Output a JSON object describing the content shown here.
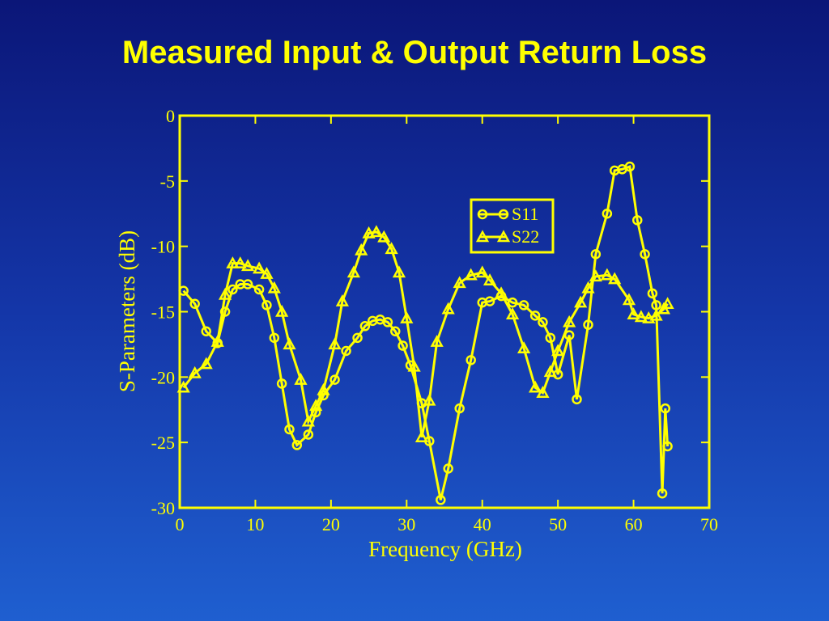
{
  "chart_data": {
    "type": "line",
    "title": "Measured Input & Output Return Loss",
    "xlabel": "Frequency (GHz)",
    "ylabel": "S-Parameters (dB)",
    "xlim": [
      0,
      70
    ],
    "xticks": [
      0,
      10,
      20,
      30,
      40,
      50,
      60,
      70
    ],
    "ylim": [
      -30,
      0
    ],
    "yticks": [
      -30,
      -25,
      -20,
      -15,
      -10,
      -5,
      0
    ],
    "series": [
      {
        "name": "S11",
        "color": "#ffff00",
        "marker": "circle",
        "x": [
          0.5,
          2,
          3.5,
          5,
          6,
          7,
          8,
          9,
          10.5,
          11.5,
          12.5,
          13.5,
          14.5,
          15.5,
          17,
          18,
          19,
          20.5,
          22,
          23.5,
          24.5,
          25.5,
          26.5,
          27.5,
          28.5,
          29.5,
          30.5,
          32,
          33,
          34.5,
          35.5,
          37,
          38.5,
          40,
          41,
          42.5,
          44,
          45.5,
          47,
          48,
          49,
          50,
          51.5,
          52.5,
          54,
          55,
          56.5,
          57.5,
          58.5,
          59.5,
          60.5,
          61.5,
          62.5,
          63,
          63.8,
          64.2,
          64.5
        ],
        "values": [
          -13.4,
          -14.4,
          -16.5,
          -17.4,
          -15,
          -13.3,
          -12.9,
          -12.9,
          -13.3,
          -14.5,
          -17,
          -20.5,
          -24,
          -25.2,
          -24.4,
          -22.7,
          -21.4,
          -20.2,
          -18,
          -17,
          -16.1,
          -15.7,
          -15.6,
          -15.8,
          -16.5,
          -17.6,
          -19.1,
          -22,
          -24.9,
          -29.4,
          -27,
          -22.4,
          -18.7,
          -14.3,
          -14.2,
          -13.8,
          -14.3,
          -14.5,
          -15.3,
          -15.8,
          -17,
          -19.8,
          -16.8,
          -21.7,
          -16,
          -10.6,
          -7.5,
          -4.2,
          -4.1,
          -3.9,
          -8,
          -10.6,
          -13.6,
          -14.5,
          -28.9,
          -22.4,
          -25.3
        ]
      },
      {
        "name": "S22",
        "color": "#ffff00",
        "marker": "triangle",
        "x": [
          0.5,
          2,
          3.5,
          5,
          6,
          7,
          8,
          9,
          10.5,
          11.5,
          12.5,
          13.5,
          14.5,
          16,
          17,
          18,
          19,
          20.5,
          21.5,
          23,
          24,
          25,
          26,
          27,
          28,
          29,
          30,
          31,
          32,
          33,
          34,
          35.5,
          37,
          38.5,
          40,
          41,
          42.5,
          44,
          45.5,
          47,
          48,
          49,
          50,
          51.5,
          53,
          54,
          55,
          56.5,
          57.5,
          59.4,
          60,
          61,
          62,
          63,
          64,
          64.5
        ],
        "values": [
          -20.8,
          -19.7,
          -19,
          -17.3,
          -13.7,
          -11.3,
          -11.3,
          -11.5,
          -11.7,
          -12.1,
          -13.2,
          -15,
          -17.5,
          -20.2,
          -23.4,
          -22.2,
          -21,
          -17.5,
          -14.2,
          -12,
          -10.3,
          -9,
          -8.9,
          -9.3,
          -10.2,
          -12,
          -15.5,
          -19.2,
          -24.6,
          -21.8,
          -17.3,
          -14.8,
          -12.8,
          -12.2,
          -12,
          -12.6,
          -13.6,
          -15.2,
          -17.8,
          -20.8,
          -21.2,
          -19.6,
          -18,
          -15.8,
          -14.3,
          -13.2,
          -12.3,
          -12.2,
          -12.5,
          -14.1,
          -15.2,
          -15.4,
          -15.5,
          -15.3,
          -14.8,
          -14.4
        ]
      }
    ]
  }
}
